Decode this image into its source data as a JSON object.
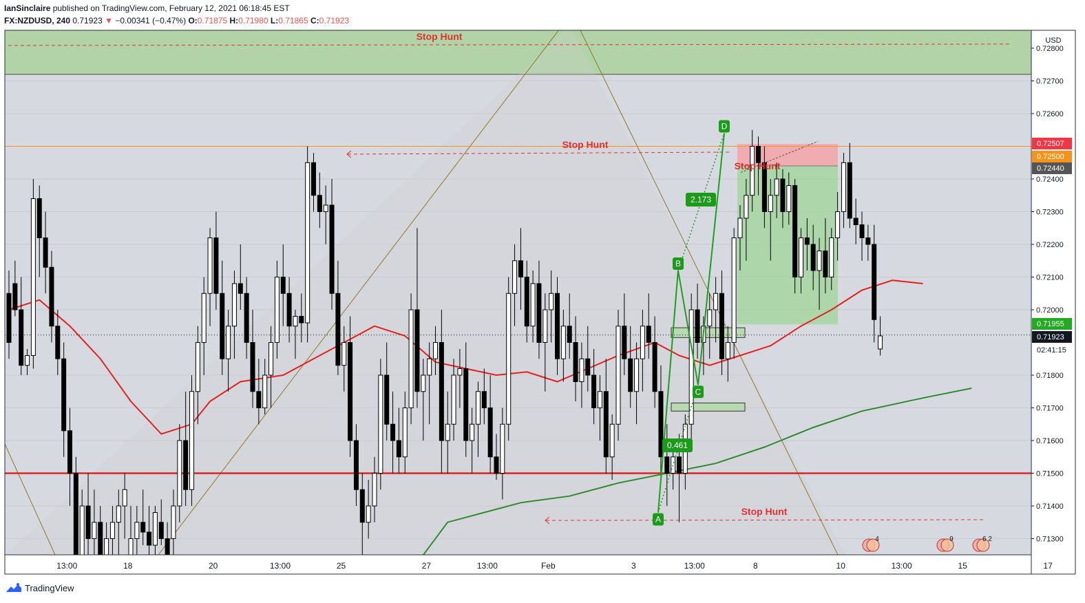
{
  "header": {
    "author": "IanSinclaire",
    "published_text": " published on TradingView.com, February 12, 2021 06:18:45 EST",
    "symbol": "FX:NZDUSD, 240",
    "last": "0.71923",
    "arrow": "▼",
    "change": "−0.00341 (−0.47%)",
    "o_label": "O:",
    "o_val": "0.71875",
    "h_label": "H:",
    "h_val": "0.71980",
    "l_label": "L:",
    "l_val": "0.71865",
    "c_label": "C:",
    "c_val": "0.71923"
  },
  "footer": {
    "brand": "TradingView"
  },
  "chart_data": {
    "type": "candlestick",
    "currency": "USD",
    "ylim": [
      0.71255,
      0.7286
    ],
    "y_ticks": [
      "0.72800",
      "0.72700",
      "0.72600",
      "0.72400",
      "0.72300",
      "0.72200",
      "0.72100",
      "0.72000",
      "0.71800",
      "0.71700",
      "0.71600",
      "0.71500",
      "0.71400",
      "0.71300"
    ],
    "x_ticks": [
      {
        "label": "13:00",
        "bar": 5
      },
      {
        "label": "18",
        "bar": 15
      },
      {
        "label": "20",
        "bar": 29
      },
      {
        "label": "13:00",
        "bar": 40
      },
      {
        "label": "25",
        "bar": 50
      },
      {
        "label": "27",
        "bar": 64
      },
      {
        "label": "13:00",
        "bar": 74
      },
      {
        "label": "Feb",
        "bar": 84
      },
      {
        "label": "3",
        "bar": 98
      },
      {
        "label": "13:00",
        "bar": 108
      },
      {
        "label": "8",
        "bar": 118
      },
      {
        "label": "10",
        "bar": 132
      },
      {
        "label": "13:00",
        "bar": 142
      },
      {
        "label": "15",
        "bar": 152
      },
      {
        "label": "17",
        "bar": 166
      }
    ],
    "candles_ohlc": [
      [
        0.7205,
        0.7212,
        0.7185,
        0.719
      ],
      [
        0.7208,
        0.7215,
        0.7198,
        0.72
      ],
      [
        0.72,
        0.721,
        0.718,
        0.7183
      ],
      [
        0.7183,
        0.7188,
        0.718,
        0.7186
      ],
      [
        0.7186,
        0.724,
        0.7182,
        0.7234
      ],
      [
        0.7234,
        0.7238,
        0.721,
        0.7222
      ],
      [
        0.7222,
        0.723,
        0.7205,
        0.7213
      ],
      [
        0.7213,
        0.7218,
        0.719,
        0.7195
      ],
      [
        0.7195,
        0.72,
        0.718,
        0.7185
      ],
      [
        0.7185,
        0.719,
        0.7155,
        0.7163
      ],
      [
        0.7163,
        0.717,
        0.714,
        0.715
      ],
      [
        0.715,
        0.7155,
        0.7115,
        0.7125
      ],
      [
        0.7125,
        0.7145,
        0.711,
        0.714
      ],
      [
        0.714,
        0.715,
        0.7125,
        0.713
      ],
      [
        0.713,
        0.7145,
        0.712,
        0.7135
      ],
      [
        0.7135,
        0.714,
        0.712,
        0.7125
      ],
      [
        0.7125,
        0.7135,
        0.711,
        0.713
      ],
      [
        0.713,
        0.714,
        0.712,
        0.7135
      ],
      [
        0.7135,
        0.7145,
        0.7125,
        0.714
      ],
      [
        0.714,
        0.715,
        0.713,
        0.7145
      ],
      [
        0.7115,
        0.714,
        0.711,
        0.713
      ],
      [
        0.713,
        0.714,
        0.7125,
        0.7135
      ],
      [
        0.7135,
        0.7145,
        0.7128,
        0.7132
      ],
      [
        0.7132,
        0.714,
        0.7125,
        0.7128
      ],
      [
        0.7128,
        0.714,
        0.7122,
        0.7138
      ],
      [
        0.7135,
        0.7142,
        0.7128,
        0.713
      ],
      [
        0.713,
        0.7135,
        0.712,
        0.7125
      ],
      [
        0.713,
        0.7145,
        0.7125,
        0.714
      ],
      [
        0.714,
        0.7165,
        0.7135,
        0.716
      ],
      [
        0.716,
        0.7175,
        0.714,
        0.7145
      ],
      [
        0.7145,
        0.718,
        0.714,
        0.7175
      ],
      [
        0.7175,
        0.7195,
        0.7165,
        0.719
      ],
      [
        0.719,
        0.721,
        0.718,
        0.7205
      ],
      [
        0.7205,
        0.7225,
        0.7195,
        0.7222
      ],
      [
        0.7222,
        0.723,
        0.72,
        0.7205
      ],
      [
        0.7205,
        0.7215,
        0.718,
        0.7185
      ],
      [
        0.7185,
        0.72,
        0.7175,
        0.7195
      ],
      [
        0.7195,
        0.7212,
        0.7185,
        0.7208
      ],
      [
        0.7208,
        0.722,
        0.72,
        0.7205
      ],
      [
        0.7205,
        0.721,
        0.7185,
        0.719
      ],
      [
        0.719,
        0.72,
        0.717,
        0.7175
      ],
      [
        0.7175,
        0.7185,
        0.7165,
        0.717
      ],
      [
        0.717,
        0.7185,
        0.7168,
        0.718
      ],
      [
        0.718,
        0.7195,
        0.717,
        0.719
      ],
      [
        0.719,
        0.7215,
        0.7185,
        0.721
      ],
      [
        0.721,
        0.722,
        0.7195,
        0.7205
      ],
      [
        0.7205,
        0.721,
        0.719,
        0.7195
      ],
      [
        0.7195,
        0.72,
        0.7185,
        0.7198
      ],
      [
        0.7198,
        0.7205,
        0.719,
        0.7196
      ],
      [
        0.7196,
        0.725,
        0.719,
        0.7245
      ],
      [
        0.7245,
        0.7248,
        0.723,
        0.7235
      ],
      [
        0.7235,
        0.7242,
        0.7225,
        0.723
      ],
      [
        0.723,
        0.7238,
        0.722,
        0.7232
      ],
      [
        0.7232,
        0.724,
        0.72,
        0.7205
      ],
      [
        0.7205,
        0.7215,
        0.718,
        0.7183
      ],
      [
        0.7183,
        0.7195,
        0.7175,
        0.719
      ],
      [
        0.719,
        0.7198,
        0.7155,
        0.716
      ],
      [
        0.716,
        0.7165,
        0.714,
        0.7145
      ],
      [
        0.7145,
        0.715,
        0.7125,
        0.7135
      ],
      [
        0.7135,
        0.7148,
        0.713,
        0.714
      ],
      [
        0.714,
        0.7155,
        0.7135,
        0.715
      ],
      [
        0.715,
        0.7185,
        0.7145,
        0.718
      ],
      [
        0.718,
        0.719,
        0.716,
        0.7165
      ],
      [
        0.7165,
        0.7175,
        0.715,
        0.716
      ],
      [
        0.716,
        0.717,
        0.715,
        0.7155
      ],
      [
        0.7155,
        0.7175,
        0.715,
        0.717
      ],
      [
        0.717,
        0.7205,
        0.7165,
        0.72
      ],
      [
        0.72,
        0.7225,
        0.717,
        0.7175
      ],
      [
        0.7175,
        0.7185,
        0.716,
        0.718
      ],
      [
        0.718,
        0.719,
        0.7165,
        0.7185
      ],
      [
        0.7185,
        0.7195,
        0.718,
        0.719
      ],
      [
        0.719,
        0.72,
        0.715,
        0.716
      ],
      [
        0.716,
        0.7175,
        0.715,
        0.7165
      ],
      [
        0.7165,
        0.7185,
        0.716,
        0.718
      ],
      [
        0.718,
        0.7188,
        0.717,
        0.7182
      ],
      [
        0.7182,
        0.719,
        0.7155,
        0.716
      ],
      [
        0.716,
        0.717,
        0.715,
        0.7165
      ],
      [
        0.7165,
        0.7178,
        0.7155,
        0.7175
      ],
      [
        0.7175,
        0.7182,
        0.7165,
        0.717
      ],
      [
        0.717,
        0.718,
        0.715,
        0.7155
      ],
      [
        0.7155,
        0.7162,
        0.7148,
        0.715
      ],
      [
        0.715,
        0.717,
        0.7142,
        0.7165
      ],
      [
        0.7165,
        0.721,
        0.716,
        0.7205
      ],
      [
        0.7205,
        0.722,
        0.7195,
        0.7215
      ],
      [
        0.7215,
        0.7225,
        0.72,
        0.721
      ],
      [
        0.721,
        0.7215,
        0.719,
        0.7195
      ],
      [
        0.7195,
        0.7212,
        0.719,
        0.7208
      ],
      [
        0.7208,
        0.7215,
        0.7185,
        0.719
      ],
      [
        0.719,
        0.7205,
        0.7175,
        0.72
      ],
      [
        0.72,
        0.7212,
        0.719,
        0.7205
      ],
      [
        0.7205,
        0.721,
        0.718,
        0.7185
      ],
      [
        0.7185,
        0.72,
        0.7178,
        0.7195
      ],
      [
        0.7195,
        0.7205,
        0.7185,
        0.719
      ],
      [
        0.719,
        0.7198,
        0.7172,
        0.7178
      ],
      [
        0.7178,
        0.719,
        0.717,
        0.7185
      ],
      [
        0.7185,
        0.7195,
        0.7175,
        0.718
      ],
      [
        0.718,
        0.7188,
        0.7165,
        0.717
      ],
      [
        0.717,
        0.718,
        0.716,
        0.7175
      ],
      [
        0.7175,
        0.7185,
        0.715,
        0.7155
      ],
      [
        0.7155,
        0.7168,
        0.7148,
        0.7165
      ],
      [
        0.7165,
        0.72,
        0.716,
        0.7195
      ],
      [
        0.7195,
        0.7205,
        0.718,
        0.7185
      ],
      [
        0.7185,
        0.7195,
        0.717,
        0.7175
      ],
      [
        0.7175,
        0.719,
        0.7165,
        0.7185
      ],
      [
        0.7185,
        0.72,
        0.7175,
        0.7195
      ],
      [
        0.7195,
        0.7205,
        0.7185,
        0.719
      ],
      [
        0.719,
        0.7198,
        0.717,
        0.7175
      ],
      [
        0.7175,
        0.7183,
        0.715,
        0.7155
      ],
      [
        0.7155,
        0.7165,
        0.714,
        0.715
      ],
      [
        0.715,
        0.716,
        0.7145,
        0.7155
      ],
      [
        0.7155,
        0.7162,
        0.7135,
        0.715
      ],
      [
        0.715,
        0.7168,
        0.7145,
        0.7165
      ],
      [
        0.7165,
        0.7205,
        0.716,
        0.72
      ],
      [
        0.72,
        0.7208,
        0.7185,
        0.719
      ],
      [
        0.719,
        0.7198,
        0.718,
        0.7195
      ],
      [
        0.7195,
        0.7205,
        0.7185,
        0.72
      ],
      [
        0.72,
        0.721,
        0.719,
        0.7205
      ],
      [
        0.7205,
        0.7212,
        0.718,
        0.7185
      ],
      [
        0.7185,
        0.7195,
        0.7178,
        0.719
      ],
      [
        0.719,
        0.7225,
        0.7185,
        0.7222
      ],
      [
        0.7222,
        0.7232,
        0.7212,
        0.7228
      ],
      [
        0.7228,
        0.724,
        0.7215,
        0.7235
      ],
      [
        0.7235,
        0.7255,
        0.723,
        0.725
      ],
      [
        0.725,
        0.7253,
        0.7235,
        0.7245
      ],
      [
        0.7245,
        0.725,
        0.7225,
        0.723
      ],
      [
        0.723,
        0.724,
        0.7215,
        0.7235
      ],
      [
        0.7235,
        0.7245,
        0.7228,
        0.724
      ],
      [
        0.724,
        0.7243,
        0.7225,
        0.723
      ],
      [
        0.723,
        0.7242,
        0.7226,
        0.7238
      ],
      [
        0.7238,
        0.724,
        0.7205,
        0.721
      ],
      [
        0.721,
        0.7225,
        0.7205,
        0.7222
      ],
      [
        0.7222,
        0.7228,
        0.7212,
        0.722
      ],
      [
        0.722,
        0.7226,
        0.7206,
        0.7212
      ],
      [
        0.7212,
        0.7222,
        0.72,
        0.7218
      ],
      [
        0.7218,
        0.7228,
        0.7205,
        0.721
      ],
      [
        0.721,
        0.7225,
        0.7206,
        0.7222
      ],
      [
        0.7222,
        0.7236,
        0.7215,
        0.723
      ],
      [
        0.723,
        0.7248,
        0.7225,
        0.7245
      ],
      [
        0.7245,
        0.7251,
        0.7225,
        0.7228
      ],
      [
        0.7228,
        0.7234,
        0.722,
        0.7226
      ],
      [
        0.7226,
        0.723,
        0.7215,
        0.7222
      ],
      [
        0.7222,
        0.7226,
        0.7215,
        0.722
      ],
      [
        0.722,
        0.7226,
        0.719,
        0.7197
      ],
      [
        0.7188,
        0.7198,
        0.7186,
        0.7192
      ]
    ],
    "series": [
      {
        "name": "",
        "color": "#e3211d",
        "points": [
          [
            0,
            0.72
          ],
          [
            5,
            0.7203
          ],
          [
            10,
            0.7195
          ],
          [
            15,
            0.7185
          ],
          [
            20,
            0.7172
          ],
          [
            25,
            0.7162
          ],
          [
            30,
            0.7165
          ],
          [
            33,
            0.7172
          ],
          [
            38,
            0.7178
          ],
          [
            45,
            0.718
          ],
          [
            50,
            0.7185
          ],
          [
            55,
            0.719
          ],
          [
            60,
            0.7195
          ],
          [
            65,
            0.7192
          ],
          [
            70,
            0.7184
          ],
          [
            75,
            0.7182
          ],
          [
            80,
            0.718
          ],
          [
            85,
            0.7181
          ],
          [
            90,
            0.7178
          ],
          [
            95,
            0.7182
          ],
          [
            100,
            0.7186
          ],
          [
            106,
            0.719
          ],
          [
            110,
            0.7186
          ],
          [
            115,
            0.7183
          ],
          [
            120,
            0.7186
          ],
          [
            125,
            0.7189
          ],
          [
            130,
            0.7195
          ],
          [
            135,
            0.72
          ],
          [
            140,
            0.7206
          ],
          [
            145,
            0.7209
          ],
          [
            150,
            0.7208
          ]
        ]
      },
      {
        "name": "",
        "color": "#2e8b2e",
        "points": [
          [
            68,
            0.7125
          ],
          [
            72,
            0.7135
          ],
          [
            78,
            0.7138
          ],
          [
            84,
            0.7141
          ],
          [
            92,
            0.7143
          ],
          [
            100,
            0.7147
          ],
          [
            108,
            0.715
          ],
          [
            116,
            0.7153
          ],
          [
            124,
            0.7158
          ],
          [
            132,
            0.7164
          ],
          [
            140,
            0.7169
          ],
          [
            150,
            0.7173
          ],
          [
            158,
            0.7176
          ]
        ]
      }
    ],
    "horizontal_lines": [
      {
        "price": 0.715,
        "color": "#d62728",
        "style": "solid"
      },
      {
        "price": 0.725,
        "color": "#f7931a",
        "style": "solid"
      },
      {
        "price": 0.71923,
        "color": "#131722",
        "style": "dotted"
      }
    ],
    "zones": [
      {
        "from": 0.7272,
        "to": 0.7286,
        "color": "green"
      }
    ],
    "trade_box": {
      "entry": 0.7244,
      "stop": 0.72507,
      "target": 0.71955
    },
    "harmonic": {
      "points": [
        [
          "A",
          0.7138
        ],
        [
          "B",
          0.7212
        ],
        [
          "C",
          0.7177
        ],
        [
          "D",
          0.7254
        ]
      ],
      "ratios": [
        "0.461",
        "2.173"
      ]
    },
    "annotations": [
      "Stop Hunt",
      "Stop Hunt",
      "Stop Hunt",
      "Stop Hunt"
    ],
    "price_labels": [
      {
        "text": "0.72507",
        "color": "#f23645"
      },
      {
        "text": "0.72500",
        "color": "#f7931a"
      },
      {
        "text": "0.72440",
        "color": "#555555"
      },
      {
        "text": "0.71955",
        "color": "#22ab22"
      },
      {
        "text": "0.71923",
        "color": "#131722"
      },
      {
        "text": "02:41:15",
        "color": "#131722"
      }
    ],
    "events": [
      {
        "bar": 160,
        "count": "4"
      },
      {
        "bar": 181,
        "count": "9"
      },
      {
        "bar": 188,
        "count": "6 2"
      }
    ]
  }
}
